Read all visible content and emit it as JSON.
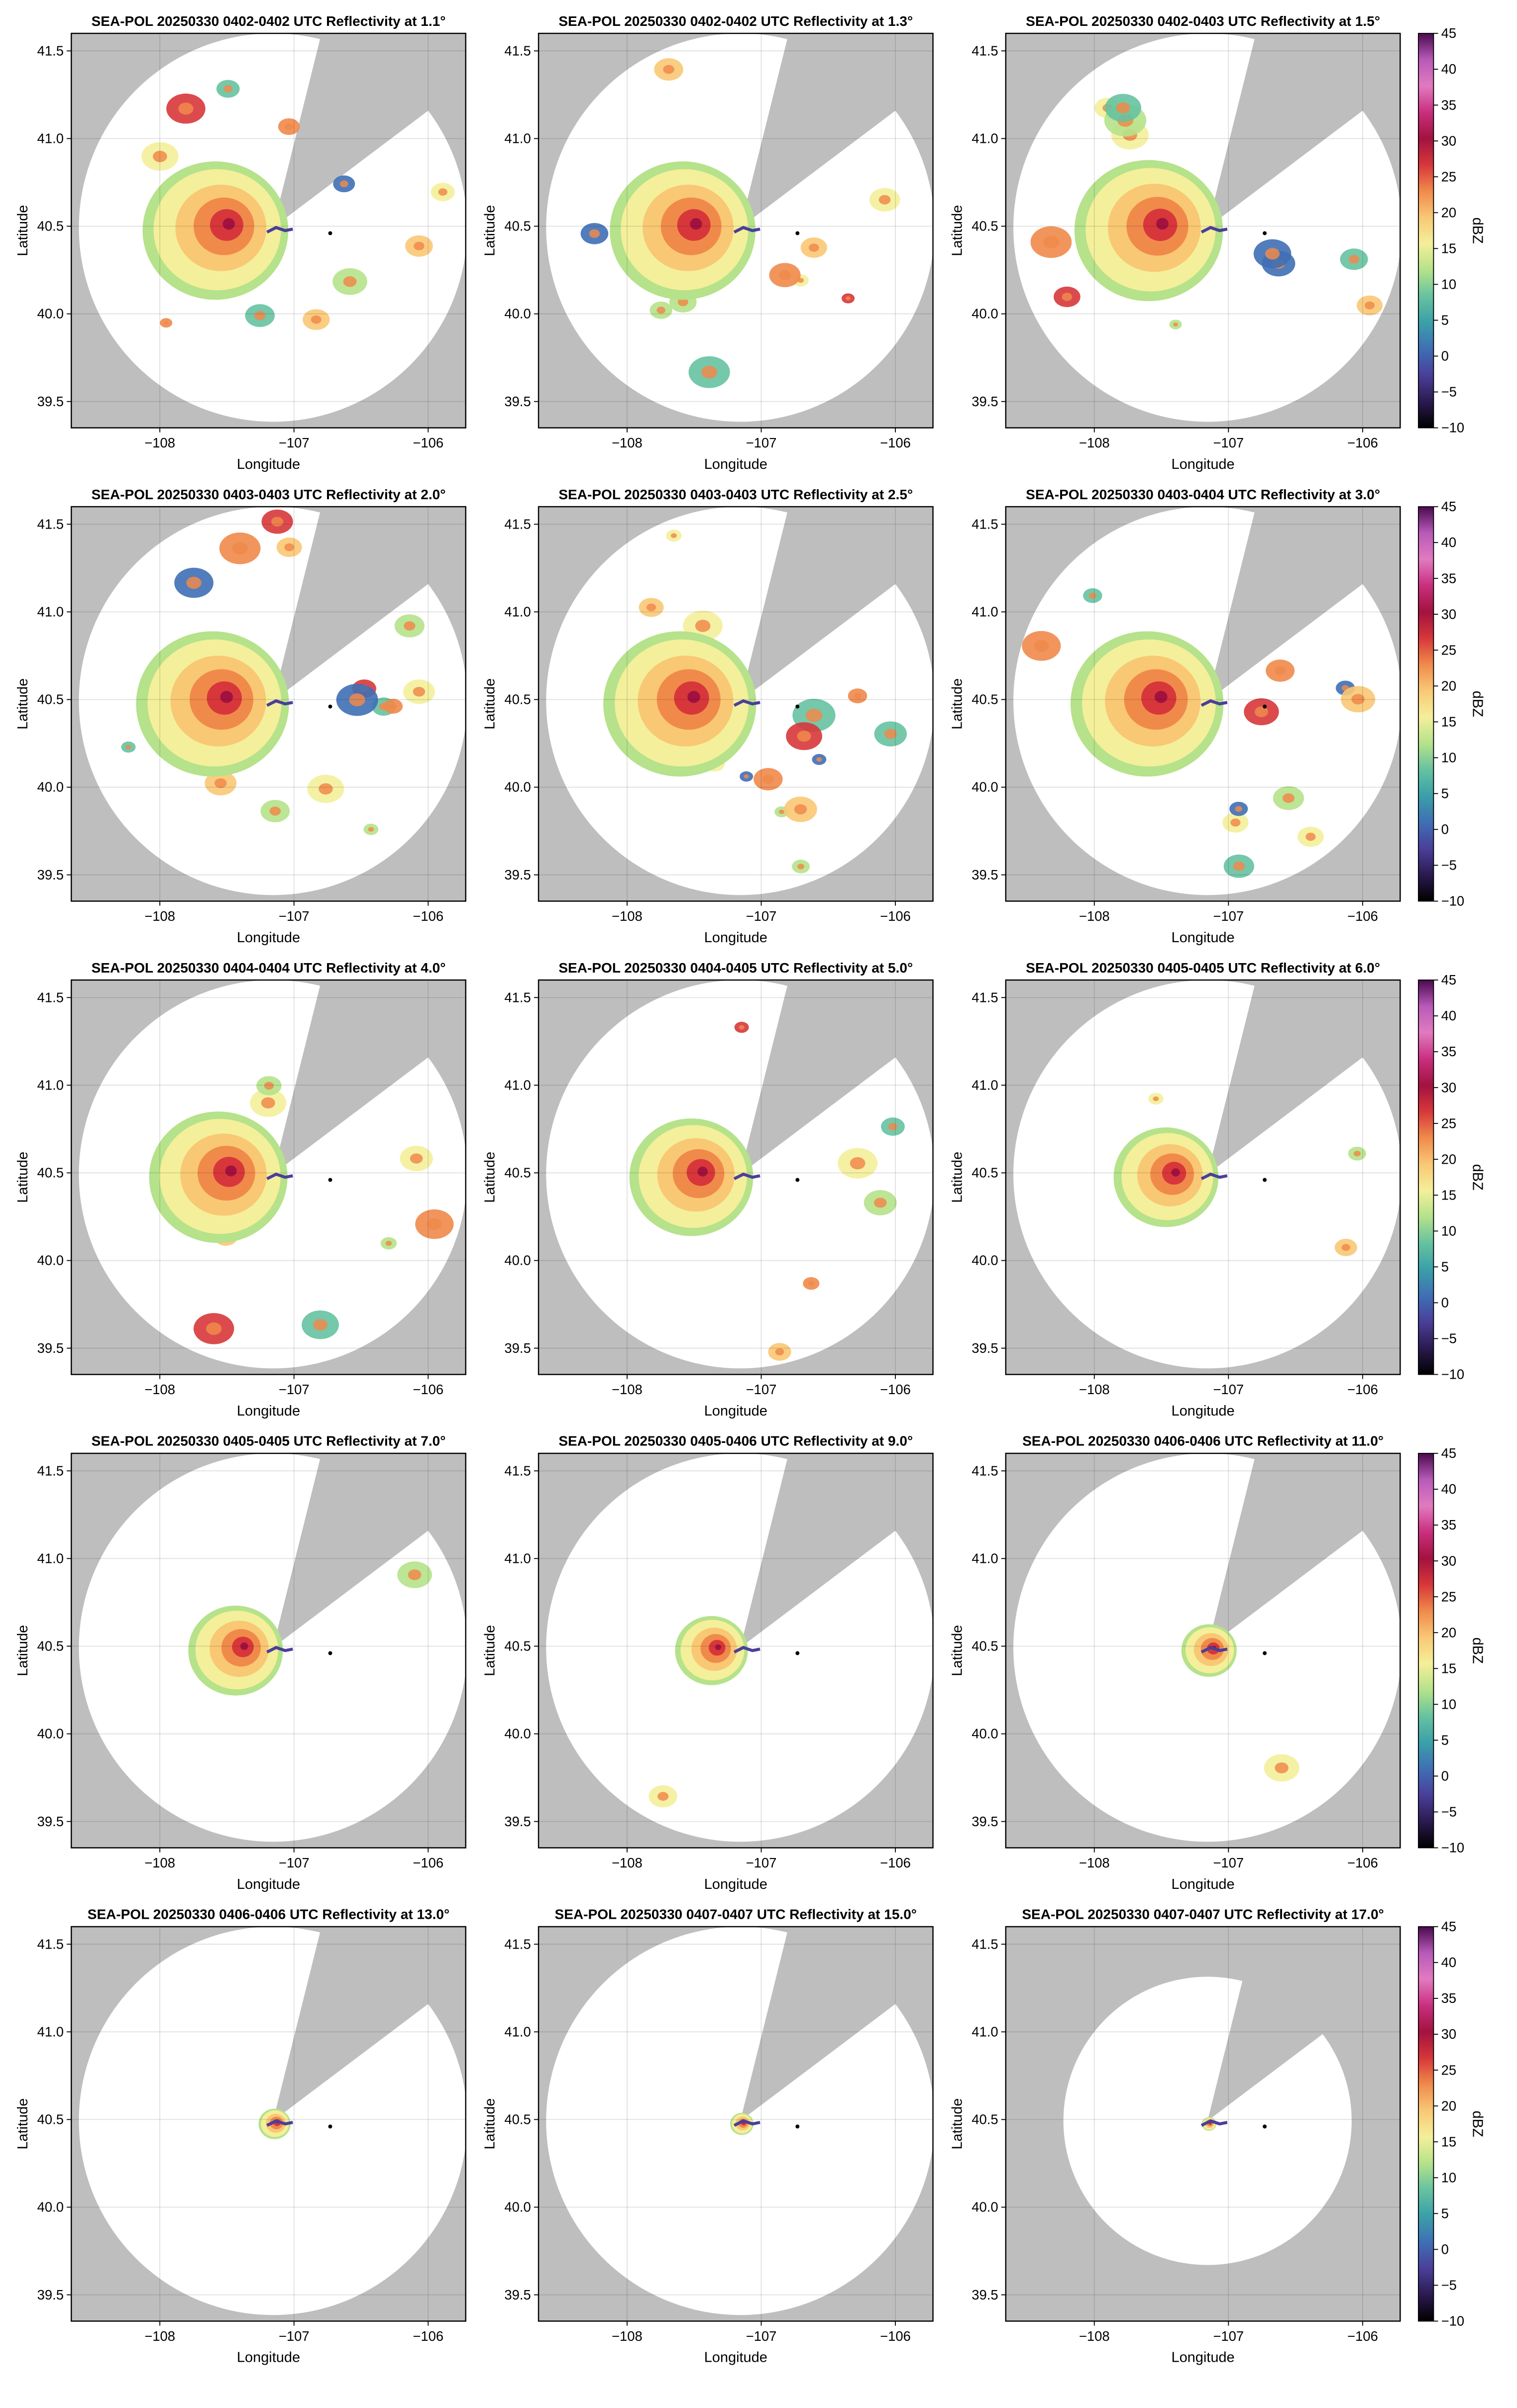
{
  "chart_data": [
    {
      "type": "radar",
      "title": "SEA-POL 20250330 0402-0402 UTC Reflectivity at 1.1°",
      "x_label": "Longitude",
      "y_label": "Latitude",
      "xlim": [
        -108.66,
        -105.72
      ],
      "ylim": [
        39.35,
        41.6
      ],
      "xticks": [
        {
          "value": -108,
          "label": "−108"
        },
        {
          "value": -107,
          "label": "−107"
        },
        {
          "value": -106,
          "label": "−106"
        }
      ],
      "yticks": [
        39.5,
        {
          "value": 40,
          "label": "40.0"
        },
        40.5,
        {
          "value": 41,
          "label": "41.0"
        },
        41.5
      ],
      "grid": true,
      "site": {
        "x": -106.73,
        "y": 40.46
      }
    },
    {
      "type": "radar",
      "title": "SEA-POL 20250330 0402-0402 UTC Reflectivity at 1.3°",
      "x_label": "Longitude",
      "y_label": "Latitude",
      "xlim": [
        -108.66,
        -105.72
      ],
      "ylim": [
        39.35,
        41.6
      ],
      "xticks": [
        {
          "value": -108,
          "label": "−108"
        },
        {
          "value": -107,
          "label": "−107"
        },
        {
          "value": -106,
          "label": "−106"
        }
      ],
      "yticks": [
        39.5,
        {
          "value": 40,
          "label": "40.0"
        },
        40.5,
        {
          "value": 41,
          "label": "41.0"
        },
        41.5
      ],
      "grid": true,
      "site": {
        "x": -106.73,
        "y": 40.46
      }
    },
    {
      "type": "radar",
      "title": "SEA-POL 20250330 0402-0403 UTC Reflectivity at 1.5°",
      "x_label": "Longitude",
      "y_label": "Latitude",
      "xlim": [
        -108.66,
        -105.72
      ],
      "ylim": [
        39.35,
        41.6
      ],
      "xticks": [
        {
          "value": -108,
          "label": "−108"
        },
        {
          "value": -107,
          "label": "−107"
        },
        {
          "value": -106,
          "label": "−106"
        }
      ],
      "yticks": [
        39.5,
        {
          "value": 40,
          "label": "40.0"
        },
        40.5,
        {
          "value": 41,
          "label": "41.0"
        },
        41.5
      ],
      "grid": true,
      "site": {
        "x": -106.73,
        "y": 40.46
      },
      "colorbar": {
        "label": "dBZ",
        "lim": [
          -10,
          45
        ],
        "ticks": [
          {
            "value": -10,
            "label": "−10"
          },
          {
            "value": -5,
            "label": "−5"
          },
          0,
          5,
          10,
          15,
          20,
          25,
          30,
          35,
          40,
          45
        ],
        "colors": [
          "#000000",
          "#2b1a4f",
          "#4a3f9a",
          "#3f6fb5",
          "#3aa0a8",
          "#66c2a0",
          "#b5e28a",
          "#f4ef9a",
          "#f9c874",
          "#f08a4b",
          "#d7373a",
          "#a3123f",
          "#c92f7e",
          "#e17ac0",
          "#b85ab8",
          "#4b0a4f"
        ]
      }
    },
    {
      "type": "radar",
      "title": "SEA-POL 20250330 0403-0403 UTC Reflectivity at 2.0°",
      "x_label": "Longitude",
      "y_label": "Latitude",
      "xlim": [
        -108.66,
        -105.72
      ],
      "ylim": [
        39.35,
        41.6
      ],
      "xticks": [
        {
          "value": -108,
          "label": "−108"
        },
        {
          "value": -107,
          "label": "−107"
        },
        {
          "value": -106,
          "label": "−106"
        }
      ],
      "yticks": [
        39.5,
        {
          "value": 40,
          "label": "40.0"
        },
        40.5,
        {
          "value": 41,
          "label": "41.0"
        },
        41.5
      ],
      "grid": true,
      "site": {
        "x": -106.73,
        "y": 40.46
      }
    },
    {
      "type": "radar",
      "title": "SEA-POL 20250330 0403-0403 UTC Reflectivity at 2.5°",
      "x_label": "Longitude",
      "y_label": "Latitude",
      "xlim": [
        -108.66,
        -105.72
      ],
      "ylim": [
        39.35,
        41.6
      ],
      "xticks": [
        {
          "value": -108,
          "label": "−108"
        },
        {
          "value": -107,
          "label": "−107"
        },
        {
          "value": -106,
          "label": "−106"
        }
      ],
      "yticks": [
        39.5,
        {
          "value": 40,
          "label": "40.0"
        },
        40.5,
        {
          "value": 41,
          "label": "41.0"
        },
        41.5
      ],
      "grid": true,
      "site": {
        "x": -106.73,
        "y": 40.46
      }
    },
    {
      "type": "radar",
      "title": "SEA-POL 20250330 0403-0404 UTC Reflectivity at 3.0°",
      "x_label": "Longitude",
      "y_label": "Latitude",
      "xlim": [
        -108.66,
        -105.72
      ],
      "ylim": [
        39.35,
        41.6
      ],
      "xticks": [
        {
          "value": -108,
          "label": "−108"
        },
        {
          "value": -107,
          "label": "−107"
        },
        {
          "value": -106,
          "label": "−106"
        }
      ],
      "yticks": [
        39.5,
        {
          "value": 40,
          "label": "40.0"
        },
        40.5,
        {
          "value": 41,
          "label": "41.0"
        },
        41.5
      ],
      "grid": true,
      "site": {
        "x": -106.73,
        "y": 40.46
      },
      "colorbar": {
        "label": "dBZ",
        "lim": [
          -10,
          45
        ],
        "ticks": [
          {
            "value": -10,
            "label": "−10"
          },
          {
            "value": -5,
            "label": "−5"
          },
          0,
          5,
          10,
          15,
          20,
          25,
          30,
          35,
          40,
          45
        ],
        "colors": [
          "#000000",
          "#2b1a4f",
          "#4a3f9a",
          "#3f6fb5",
          "#3aa0a8",
          "#66c2a0",
          "#b5e28a",
          "#f4ef9a",
          "#f9c874",
          "#f08a4b",
          "#d7373a",
          "#a3123f",
          "#c92f7e",
          "#e17ac0",
          "#b85ab8",
          "#4b0a4f"
        ]
      }
    },
    {
      "type": "radar",
      "title": "SEA-POL 20250330 0404-0404 UTC Reflectivity at 4.0°",
      "x_label": "Longitude",
      "y_label": "Latitude",
      "xlim": [
        -108.66,
        -105.72
      ],
      "ylim": [
        39.35,
        41.6
      ],
      "xticks": [
        {
          "value": -108,
          "label": "−108"
        },
        {
          "value": -107,
          "label": "−107"
        },
        {
          "value": -106,
          "label": "−106"
        }
      ],
      "yticks": [
        39.5,
        {
          "value": 40,
          "label": "40.0"
        },
        40.5,
        {
          "value": 41,
          "label": "41.0"
        },
        41.5
      ],
      "grid": true,
      "site": {
        "x": -106.73,
        "y": 40.46
      }
    },
    {
      "type": "radar",
      "title": "SEA-POL 20250330 0404-0405 UTC Reflectivity at 5.0°",
      "x_label": "Longitude",
      "y_label": "Latitude",
      "xlim": [
        -108.66,
        -105.72
      ],
      "ylim": [
        39.35,
        41.6
      ],
      "xticks": [
        {
          "value": -108,
          "label": "−108"
        },
        {
          "value": -107,
          "label": "−107"
        },
        {
          "value": -106,
          "label": "−106"
        }
      ],
      "yticks": [
        39.5,
        {
          "value": 40,
          "label": "40.0"
        },
        40.5,
        {
          "value": 41,
          "label": "41.0"
        },
        41.5
      ],
      "grid": true,
      "site": {
        "x": -106.73,
        "y": 40.46
      }
    },
    {
      "type": "radar",
      "title": "SEA-POL 20250330 0405-0405 UTC Reflectivity at 6.0°",
      "x_label": "Longitude",
      "y_label": "Latitude",
      "xlim": [
        -108.66,
        -105.72
      ],
      "ylim": [
        39.35,
        41.6
      ],
      "xticks": [
        {
          "value": -108,
          "label": "−108"
        },
        {
          "value": -107,
          "label": "−107"
        },
        {
          "value": -106,
          "label": "−106"
        }
      ],
      "yticks": [
        39.5,
        {
          "value": 40,
          "label": "40.0"
        },
        40.5,
        {
          "value": 41,
          "label": "41.0"
        },
        41.5
      ],
      "grid": true,
      "site": {
        "x": -106.73,
        "y": 40.46
      },
      "colorbar": {
        "label": "dBZ",
        "lim": [
          -10,
          45
        ],
        "ticks": [
          {
            "value": -10,
            "label": "−10"
          },
          {
            "value": -5,
            "label": "−5"
          },
          0,
          5,
          10,
          15,
          20,
          25,
          30,
          35,
          40,
          45
        ],
        "colors": [
          "#000000",
          "#2b1a4f",
          "#4a3f9a",
          "#3f6fb5",
          "#3aa0a8",
          "#66c2a0",
          "#b5e28a",
          "#f4ef9a",
          "#f9c874",
          "#f08a4b",
          "#d7373a",
          "#a3123f",
          "#c92f7e",
          "#e17ac0",
          "#b85ab8",
          "#4b0a4f"
        ]
      }
    },
    {
      "type": "radar",
      "title": "SEA-POL 20250330 0405-0405 UTC Reflectivity at 7.0°",
      "x_label": "Longitude",
      "y_label": "Latitude",
      "xlim": [
        -108.66,
        -105.72
      ],
      "ylim": [
        39.35,
        41.6
      ],
      "xticks": [
        {
          "value": -108,
          "label": "−108"
        },
        {
          "value": -107,
          "label": "−107"
        },
        {
          "value": -106,
          "label": "−106"
        }
      ],
      "yticks": [
        39.5,
        {
          "value": 40,
          "label": "40.0"
        },
        40.5,
        {
          "value": 41,
          "label": "41.0"
        },
        41.5
      ],
      "grid": true,
      "site": {
        "x": -106.73,
        "y": 40.46
      }
    },
    {
      "type": "radar",
      "title": "SEA-POL 20250330 0405-0406 UTC Reflectivity at 9.0°",
      "x_label": "Longitude",
      "y_label": "Latitude",
      "xlim": [
        -108.66,
        -105.72
      ],
      "ylim": [
        39.35,
        41.6
      ],
      "xticks": [
        {
          "value": -108,
          "label": "−108"
        },
        {
          "value": -107,
          "label": "−107"
        },
        {
          "value": -106,
          "label": "−106"
        }
      ],
      "yticks": [
        39.5,
        {
          "value": 40,
          "label": "40.0"
        },
        40.5,
        {
          "value": 41,
          "label": "41.0"
        },
        41.5
      ],
      "grid": true,
      "site": {
        "x": -106.73,
        "y": 40.46
      }
    },
    {
      "type": "radar",
      "title": "SEA-POL 20250330 0406-0406 UTC Reflectivity at 11.0°",
      "x_label": "Longitude",
      "y_label": "Latitude",
      "xlim": [
        -108.66,
        -105.72
      ],
      "ylim": [
        39.35,
        41.6
      ],
      "xticks": [
        {
          "value": -108,
          "label": "−108"
        },
        {
          "value": -107,
          "label": "−107"
        },
        {
          "value": -106,
          "label": "−106"
        }
      ],
      "yticks": [
        39.5,
        {
          "value": 40,
          "label": "40.0"
        },
        40.5,
        {
          "value": 41,
          "label": "41.0"
        },
        41.5
      ],
      "grid": true,
      "site": {
        "x": -106.73,
        "y": 40.46
      },
      "colorbar": {
        "label": "dBZ",
        "lim": [
          -10,
          45
        ],
        "ticks": [
          {
            "value": -10,
            "label": "−10"
          },
          {
            "value": -5,
            "label": "−5"
          },
          0,
          5,
          10,
          15,
          20,
          25,
          30,
          35,
          40,
          45
        ],
        "colors": [
          "#000000",
          "#2b1a4f",
          "#4a3f9a",
          "#3f6fb5",
          "#3aa0a8",
          "#66c2a0",
          "#b5e28a",
          "#f4ef9a",
          "#f9c874",
          "#f08a4b",
          "#d7373a",
          "#a3123f",
          "#c92f7e",
          "#e17ac0",
          "#b85ab8",
          "#4b0a4f"
        ]
      }
    },
    {
      "type": "radar",
      "title": "SEA-POL 20250330 0406-0406 UTC Reflectivity at 13.0°",
      "x_label": "Longitude",
      "y_label": "Latitude",
      "xlim": [
        -108.66,
        -105.72
      ],
      "ylim": [
        39.35,
        41.6
      ],
      "xticks": [
        {
          "value": -108,
          "label": "−108"
        },
        {
          "value": -107,
          "label": "−107"
        },
        {
          "value": -106,
          "label": "−106"
        }
      ],
      "yticks": [
        39.5,
        {
          "value": 40,
          "label": "40.0"
        },
        40.5,
        {
          "value": 41,
          "label": "41.0"
        },
        41.5
      ],
      "grid": true,
      "site": {
        "x": -106.73,
        "y": 40.46
      }
    },
    {
      "type": "radar",
      "title": "SEA-POL 20250330 0407-0407 UTC Reflectivity at 15.0°",
      "x_label": "Longitude",
      "y_label": "Latitude",
      "xlim": [
        -108.66,
        -105.72
      ],
      "ylim": [
        39.35,
        41.6
      ],
      "xticks": [
        {
          "value": -108,
          "label": "−108"
        },
        {
          "value": -107,
          "label": "−107"
        },
        {
          "value": -106,
          "label": "−106"
        }
      ],
      "yticks": [
        39.5,
        {
          "value": 40,
          "label": "40.0"
        },
        40.5,
        {
          "value": 41,
          "label": "41.0"
        },
        41.5
      ],
      "grid": true,
      "site": {
        "x": -106.73,
        "y": 40.46
      }
    },
    {
      "type": "radar",
      "title": "SEA-POL 20250330 0407-0407 UTC Reflectivity at 17.0°",
      "x_label": "Longitude",
      "y_label": "Latitude",
      "xlim": [
        -108.66,
        -105.72
      ],
      "ylim": [
        39.35,
        41.6
      ],
      "xticks": [
        {
          "value": -108,
          "label": "−108"
        },
        {
          "value": -107,
          "label": "−107"
        },
        {
          "value": -106,
          "label": "−106"
        }
      ],
      "yticks": [
        39.5,
        {
          "value": 40,
          "label": "40.0"
        },
        40.5,
        {
          "value": 41,
          "label": "41.0"
        },
        41.5
      ],
      "grid": true,
      "site": {
        "x": -106.73,
        "y": 40.46
      },
      "colorbar": {
        "label": "dBZ",
        "lim": [
          -10,
          45
        ],
        "ticks": [
          {
            "value": -10,
            "label": "−10"
          },
          {
            "value": -5,
            "label": "−5"
          },
          0,
          5,
          10,
          15,
          20,
          25,
          30,
          35,
          40,
          45
        ],
        "colors": [
          "#000000",
          "#2b1a4f",
          "#4a3f9a",
          "#3f6fb5",
          "#3aa0a8",
          "#66c2a0",
          "#b5e28a",
          "#f4ef9a",
          "#f9c874",
          "#f08a4b",
          "#d7373a",
          "#a3123f",
          "#c92f7e",
          "#e17ac0",
          "#b85ab8",
          "#4b0a4f"
        ]
      }
    }
  ]
}
